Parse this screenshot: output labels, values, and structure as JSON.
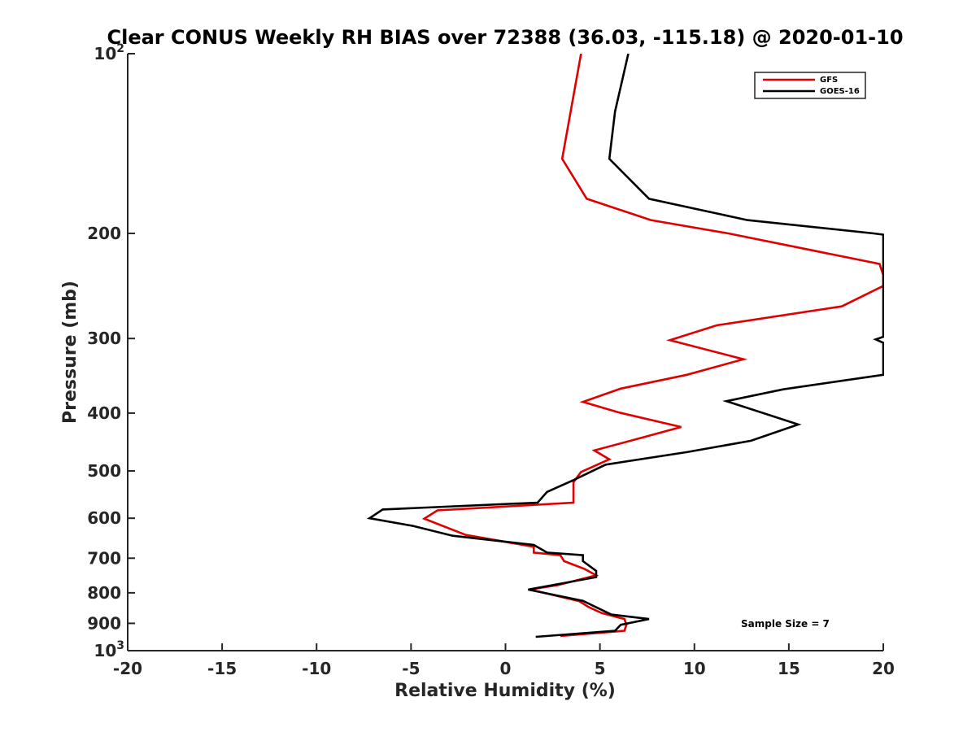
{
  "chart_data": {
    "type": "line",
    "title": "Clear CONUS Weekly RH BIAS over 72388 (36.03, -115.18) @ 2020-01-10",
    "xlabel": "Relative Humidity (%)",
    "ylabel": "Pressure (mb)",
    "xlim": [
      -20,
      20
    ],
    "ylim": [
      100,
      1000
    ],
    "y_scale": "log",
    "y_reversed": true,
    "grid": false,
    "legend_position": "top-right",
    "x_ticks": [
      "-20",
      "-15",
      "-10",
      "-5",
      "0",
      "5",
      "10",
      "15",
      "20"
    ],
    "y_ticks": [
      {
        "value": 100,
        "label": "10",
        "sup": "2"
      },
      {
        "value": 200,
        "label": "200"
      },
      {
        "value": 300,
        "label": "300"
      },
      {
        "value": 400,
        "label": "400"
      },
      {
        "value": 500,
        "label": "500"
      },
      {
        "value": 600,
        "label": "600"
      },
      {
        "value": 700,
        "label": "700"
      },
      {
        "value": 800,
        "label": "800"
      },
      {
        "value": 900,
        "label": "900"
      },
      {
        "value": 1000,
        "label": "10",
        "sup": "3"
      }
    ],
    "annotation": "Sample Size = 7",
    "series": [
      {
        "name": "GFS",
        "color": "#e00000",
        "points": [
          [
            4.0,
            100
          ],
          [
            3.0,
            150
          ],
          [
            4.3,
            175
          ],
          [
            7.7,
            190
          ],
          [
            11.8,
            200
          ],
          [
            19.8,
            225
          ],
          [
            20.0,
            235
          ],
          [
            20.0,
            245
          ],
          [
            17.8,
            265
          ],
          [
            11.2,
            285
          ],
          [
            8.7,
            302
          ],
          [
            12.6,
            325
          ],
          [
            9.6,
            345
          ],
          [
            6.1,
            364
          ],
          [
            4.1,
            383
          ],
          [
            6.0,
            399
          ],
          [
            9.3,
            422
          ],
          [
            7.2,
            440
          ],
          [
            4.7,
            462
          ],
          [
            5.5,
            478
          ],
          [
            4.0,
            502
          ],
          [
            3.6,
            522
          ],
          [
            3.6,
            565
          ],
          [
            -3.6,
            582
          ],
          [
            -4.3,
            601
          ],
          [
            -2.1,
            640
          ],
          [
            1.5,
            670
          ],
          [
            1.5,
            685
          ],
          [
            2.9,
            692
          ],
          [
            3.1,
            708
          ],
          [
            4.2,
            730
          ],
          [
            4.8,
            748
          ],
          [
            2.8,
            776
          ],
          [
            1.3,
            790
          ],
          [
            3.9,
            826
          ],
          [
            4.4,
            845
          ],
          [
            5.1,
            865
          ],
          [
            6.3,
            885
          ],
          [
            6.4,
            905
          ],
          [
            6.3,
            926
          ],
          [
            2.9,
            945
          ]
        ]
      },
      {
        "name": "GOES-16",
        "color": "#000000",
        "points": [
          [
            6.5,
            100
          ],
          [
            5.8,
            125
          ],
          [
            5.5,
            150
          ],
          [
            7.6,
            175
          ],
          [
            12.8,
            190
          ],
          [
            19.5,
            200
          ],
          [
            20.0,
            201
          ],
          [
            20.0,
            298
          ],
          [
            19.6,
            301
          ],
          [
            20.0,
            305
          ],
          [
            20.0,
            345
          ],
          [
            14.7,
            365
          ],
          [
            11.7,
            382
          ],
          [
            15.5,
            418
          ],
          [
            13.0,
            445
          ],
          [
            9.6,
            465
          ],
          [
            5.3,
            488
          ],
          [
            3.6,
            518
          ],
          [
            2.2,
            542
          ],
          [
            1.7,
            565
          ],
          [
            -6.5,
            580
          ],
          [
            -7.2,
            600
          ],
          [
            -4.9,
            618
          ],
          [
            -2.8,
            642
          ],
          [
            1.5,
            665
          ],
          [
            2.2,
            685
          ],
          [
            4.1,
            692
          ],
          [
            4.1,
            708
          ],
          [
            4.8,
            735
          ],
          [
            4.8,
            753
          ],
          [
            1.2,
            790
          ],
          [
            4.1,
            825
          ],
          [
            5.6,
            870
          ],
          [
            7.6,
            885
          ],
          [
            6.1,
            905
          ],
          [
            5.8,
            926
          ],
          [
            1.6,
            948
          ]
        ]
      }
    ]
  }
}
